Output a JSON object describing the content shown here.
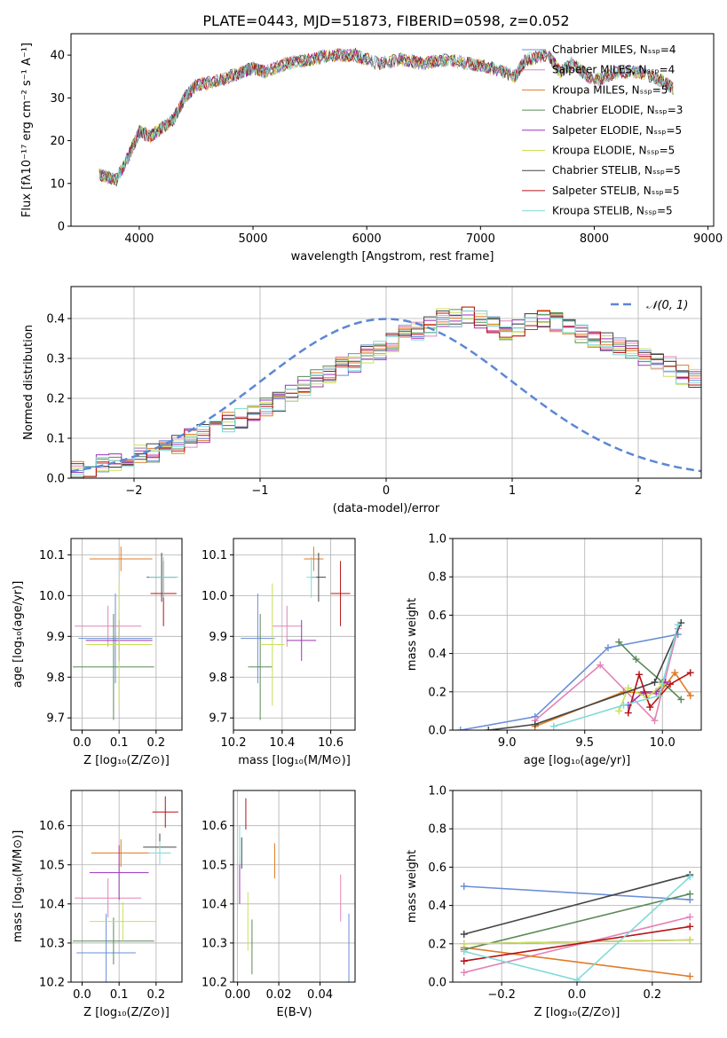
{
  "figure_title": "PLATE=0443, MJD=51873, FIBERID=0598, z=0.052",
  "colors": [
    "#6a8ed8",
    "#e383b6",
    "#e17b25",
    "#5a8a58",
    "#9b33b9",
    "#c8e05a",
    "#444444",
    "#b51316",
    "#7fd9d9"
  ],
  "chart_data": [
    {
      "id": "spectrum",
      "type": "line",
      "xlabel": "wavelength [Angstrom, rest frame]",
      "ylabel": "Flux [fλ10⁻¹⁷ erg cm⁻² s⁻¹ A⁻¹]",
      "xlim": [
        3400,
        9050
      ],
      "ylim": [
        0,
        45
      ],
      "xticks": [
        "4000",
        "5000",
        "6000",
        "7000",
        "8000",
        "9000"
      ],
      "yticks": [
        "0",
        "10",
        "20",
        "30",
        "40"
      ],
      "grid": false,
      "legend": "upper-right",
      "legend_entries": [
        "Chabrier MILES, Nₛₛₚ=4",
        "Salpeter MILES, Nₛₛₚ=4",
        "Kroupa MILES, Nₛₛₚ=5",
        "Chabrier ELODIE, Nₛₛₚ=3",
        "Salpeter ELODIE, Nₛₛₚ=5",
        "Kroupa ELODIE, Nₛₛₚ=5",
        "Chabrier STELIB, Nₛₛₚ=5",
        "Salpeter STELIB, Nₛₛₚ=5",
        "Kroupa STELIB, Nₛₛₚ=5"
      ],
      "x": [
        3650,
        3800,
        3900,
        4000,
        4100,
        4200,
        4300,
        4400,
        4500,
        4700,
        4900,
        5000,
        5100,
        5300,
        5500,
        5700,
        5900,
        6100,
        6300,
        6500,
        6700,
        6900,
        7100,
        7300,
        7400,
        7600,
        7700,
        7800,
        8000,
        8200,
        8400,
        8600,
        8700
      ],
      "y": [
        12,
        11,
        16,
        22,
        21,
        23,
        25,
        30,
        33,
        34,
        36,
        37,
        36,
        38,
        39,
        40,
        40,
        38,
        39,
        38,
        39,
        38,
        37,
        35,
        39,
        40,
        36,
        38,
        34,
        36,
        36,
        34,
        32
      ]
    },
    {
      "id": "residuals",
      "type": "histogram",
      "xlabel": "(data-model)/error",
      "ylabel": "Normed distribution",
      "xlim": [
        -2.5,
        2.5
      ],
      "ylim": [
        0,
        0.48
      ],
      "xticks": [
        "−2",
        "−1",
        "0",
        "1",
        "2"
      ],
      "yticks": [
        "0.0",
        "0.1",
        "0.2",
        "0.3",
        "0.4"
      ],
      "grid": true,
      "legend": "upper-right",
      "legend_entries": [
        "𝒩(0, 1)"
      ],
      "bin_width": 0.1,
      "bins_start": -2.5,
      "base": [
        0.02,
        0.025,
        0.035,
        0.04,
        0.05,
        0.06,
        0.065,
        0.075,
        0.085,
        0.1,
        0.11,
        0.12,
        0.14,
        0.15,
        0.16,
        0.18,
        0.19,
        0.21,
        0.23,
        0.25,
        0.26,
        0.28,
        0.29,
        0.31,
        0.32,
        0.34,
        0.36,
        0.37,
        0.38,
        0.4,
        0.4,
        0.41,
        0.4,
        0.38,
        0.37,
        0.38,
        0.39,
        0.4,
        0.39,
        0.38,
        0.36,
        0.35,
        0.34,
        0.33,
        0.32,
        0.3,
        0.29,
        0.28,
        0.26,
        0.25,
        0.23,
        0.21,
        0.2,
        0.18,
        0.17,
        0.15,
        0.14,
        0.12,
        0.11,
        0.1,
        0.09,
        0.08,
        0.07,
        0.06,
        0.055,
        0.05,
        0.045,
        0.035,
        0.03,
        0.025,
        0.02
      ]
    },
    {
      "id": "age-vs-Z",
      "type": "scatter",
      "xlabel": "Z [log₁₀(Z/Z⊙)]",
      "ylabel": "age  [log₁₀(age/yr)]",
      "xlim": [
        -0.03,
        0.27
      ],
      "ylim": [
        9.67,
        10.14
      ],
      "xticks": [
        "0.0",
        "0.1",
        "0.2"
      ],
      "yticks": [
        "9.7",
        "9.8",
        "9.9",
        "10.0",
        "10.1"
      ],
      "grid": true,
      "points": [
        {
          "x": 0.09,
          "y": 9.895,
          "xerr": 0.1,
          "yerr": 0.11
        },
        {
          "x": 0.07,
          "y": 9.925,
          "xerr": 0.09,
          "yerr": 0.05
        },
        {
          "x": 0.105,
          "y": 10.09,
          "xerr": 0.085,
          "yerr": 0.03
        },
        {
          "x": 0.085,
          "y": 9.825,
          "xerr": 0.11,
          "yerr": 0.13
        },
        {
          "x": 0.1,
          "y": 9.89,
          "xerr": 0.09,
          "yerr": 0.05
        },
        {
          "x": 0.1,
          "y": 9.88,
          "xerr": 0.09,
          "yerr": 0.15
        },
        {
          "x": 0.215,
          "y": 10.045,
          "xerr": 0.04,
          "yerr": 0.06
        },
        {
          "x": 0.22,
          "y": 10.005,
          "xerr": 0.035,
          "yerr": 0.08
        },
        {
          "x": 0.22,
          "y": 10.045,
          "xerr": 0.04,
          "yerr": 0.05
        }
      ]
    },
    {
      "id": "age-vs-mass",
      "type": "scatter",
      "xlabel": "mass [log₁₀(M/M⊙)]",
      "ylabel": "",
      "xlim": [
        10.2,
        10.7
      ],
      "ylim": [
        9.67,
        10.14
      ],
      "xticks": [
        "10.2",
        "10.4",
        "10.6"
      ],
      "yticks": [
        "9.7",
        "9.8",
        "9.9",
        "10.0",
        "10.1"
      ],
      "grid": true,
      "points": [
        {
          "x": 10.3,
          "y": 9.895,
          "xerr": 0.07,
          "yerr": 0.11
        },
        {
          "x": 10.42,
          "y": 9.925,
          "xerr": 0.06,
          "yerr": 0.05
        },
        {
          "x": 10.53,
          "y": 10.09,
          "xerr": 0.04,
          "yerr": 0.03
        },
        {
          "x": 10.31,
          "y": 9.825,
          "xerr": 0.05,
          "yerr": 0.13
        },
        {
          "x": 10.48,
          "y": 9.89,
          "xerr": 0.06,
          "yerr": 0.05
        },
        {
          "x": 10.36,
          "y": 9.88,
          "xerr": 0.05,
          "yerr": 0.15
        },
        {
          "x": 10.55,
          "y": 10.045,
          "xerr": 0.03,
          "yerr": 0.06
        },
        {
          "x": 10.64,
          "y": 10.005,
          "xerr": 0.04,
          "yerr": 0.08
        },
        {
          "x": 10.52,
          "y": 10.045,
          "xerr": 0.02,
          "yerr": 0.05
        }
      ]
    },
    {
      "id": "mass-weight-vs-age",
      "type": "line",
      "xlabel": "age  [log₁₀(age/yr)]",
      "ylabel": "mass weight",
      "xlim": [
        8.65,
        10.25
      ],
      "ylim": [
        0,
        1
      ],
      "xticks": [
        "9.0",
        "9.5",
        "10.0"
      ],
      "yticks": [
        "0.0",
        "0.2",
        "0.4",
        "0.6",
        "0.8",
        "1.0"
      ],
      "grid": true,
      "series": [
        {
          "x": [
            8.7,
            9.18,
            9.65,
            10.1
          ],
          "y": [
            0.0,
            0.07,
            0.43,
            0.5
          ]
        },
        {
          "x": [
            9.18,
            9.6,
            9.95,
            10.1
          ],
          "y": [
            0.05,
            0.34,
            0.05,
            0.53
          ]
        },
        {
          "x": [
            9.18,
            9.75,
            9.98,
            10.08,
            10.18
          ],
          "y": [
            0.02,
            0.2,
            0.19,
            0.3,
            0.18
          ]
        },
        {
          "x": [
            9.72,
            9.83,
            10.0,
            10.12
          ],
          "y": [
            0.46,
            0.37,
            0.25,
            0.16
          ]
        },
        {
          "x": [
            9.78,
            9.88,
            9.96,
            10.02
          ],
          "y": [
            0.13,
            0.2,
            0.2,
            0.25
          ]
        },
        {
          "x": [
            9.72,
            9.78,
            9.9,
            10.0
          ],
          "y": [
            0.1,
            0.22,
            0.17,
            0.24
          ]
        },
        {
          "x": [
            8.88,
            9.18,
            9.95,
            10.12
          ],
          "y": [
            0.0,
            0.03,
            0.25,
            0.56
          ]
        },
        {
          "x": [
            9.78,
            9.85,
            9.92,
            10.05,
            10.18
          ],
          "y": [
            0.09,
            0.29,
            0.12,
            0.24,
            0.3
          ]
        },
        {
          "x": [
            9.3,
            9.75,
            9.98,
            10.1
          ],
          "y": [
            0.02,
            0.13,
            0.18,
            0.55
          ]
        }
      ]
    },
    {
      "id": "mass-vs-Z",
      "type": "scatter",
      "xlabel": "Z [log₁₀(Z/Z⊙)]",
      "ylabel": "mass [log₁₀(M/M⊙)]",
      "xlim": [
        -0.03,
        0.27
      ],
      "ylim": [
        10.2,
        10.69
      ],
      "xticks": [
        "0.0",
        "0.1",
        "0.2"
      ],
      "yticks": [
        "10.2",
        "10.3",
        "10.4",
        "10.5",
        "10.6"
      ],
      "grid": true,
      "points": [
        {
          "x": 0.065,
          "y": 10.275,
          "xerr": 0.08,
          "yerr": 0.1
        },
        {
          "x": 0.07,
          "y": 10.415,
          "xerr": 0.09,
          "yerr": 0.05
        },
        {
          "x": 0.105,
          "y": 10.53,
          "xerr": 0.08,
          "yerr": 0.035
        },
        {
          "x": 0.085,
          "y": 10.305,
          "xerr": 0.11,
          "yerr": 0.06
        },
        {
          "x": 0.1,
          "y": 10.48,
          "xerr": 0.08,
          "yerr": 0.07
        },
        {
          "x": 0.11,
          "y": 10.355,
          "xerr": 0.09,
          "yerr": 0.05
        },
        {
          "x": 0.21,
          "y": 10.545,
          "xerr": 0.045,
          "yerr": 0.035
        },
        {
          "x": 0.225,
          "y": 10.635,
          "xerr": 0.035,
          "yerr": 0.04
        },
        {
          "x": 0.21,
          "y": 10.53,
          "xerr": 0.03,
          "yerr": 0.03
        }
      ]
    },
    {
      "id": "mass-vs-EBV",
      "type": "scatter",
      "xlabel": "E(B-V)",
      "ylabel": "",
      "xlim": [
        -0.002,
        0.057
      ],
      "ylim": [
        10.2,
        10.69
      ],
      "xticks": [
        "0.00",
        "0.02",
        "0.04"
      ],
      "yticks": [
        "10.2",
        "10.3",
        "10.4",
        "10.5",
        "10.6"
      ],
      "grid": true,
      "points": [
        {
          "x": 0.054,
          "y": 10.275,
          "xerr": 0,
          "yerr": 0.1
        },
        {
          "x": 0.05,
          "y": 10.415,
          "xerr": 0,
          "yerr": 0.06
        },
        {
          "x": 0.018,
          "y": 10.51,
          "xerr": 0,
          "yerr": 0.045
        },
        {
          "x": 0.007,
          "y": 10.29,
          "xerr": 0,
          "yerr": 0.07
        },
        {
          "x": 0.001,
          "y": 10.46,
          "xerr": 0,
          "yerr": 0.06
        },
        {
          "x": 0.005,
          "y": 10.355,
          "xerr": 0,
          "yerr": 0.075
        },
        {
          "x": 0.002,
          "y": 10.53,
          "xerr": 0,
          "yerr": 0.04
        },
        {
          "x": 0.004,
          "y": 10.63,
          "xerr": 0,
          "yerr": 0.04
        },
        {
          "x": 0.001,
          "y": 10.55,
          "xerr": 0,
          "yerr": 0.05
        }
      ]
    },
    {
      "id": "mass-weight-vs-Z",
      "type": "line",
      "xlabel": "Z [log₁₀(Z/Z⊙)]",
      "ylabel": "mass weight",
      "xlim": [
        -0.33,
        0.33
      ],
      "ylim": [
        0,
        1
      ],
      "xticks": [
        "−0.2",
        "0.0",
        "0.2"
      ],
      "yticks": [
        "0.0",
        "0.2",
        "0.4",
        "0.6",
        "0.8",
        "1.0"
      ],
      "grid": true,
      "series": [
        {
          "x": [
            -0.3,
            0.3
          ],
          "y": [
            0.5,
            0.43
          ]
        },
        {
          "x": [
            -0.3,
            0.3
          ],
          "y": [
            0.05,
            0.34
          ]
        },
        {
          "x": [
            -0.3,
            0.3
          ],
          "y": [
            0.18,
            0.03
          ]
        },
        {
          "x": [
            -0.3,
            0.3
          ],
          "y": [
            0.17,
            0.46
          ]
        },
        {
          "x": [
            -0.3,
            0.3
          ],
          "y": [
            0.2,
            0.22
          ]
        },
        {
          "x": [
            -0.3,
            0.3
          ],
          "y": [
            0.2,
            0.22
          ]
        },
        {
          "x": [
            -0.3,
            0.3
          ],
          "y": [
            0.25,
            0.56
          ]
        },
        {
          "x": [
            -0.3,
            0.3
          ],
          "y": [
            0.11,
            0.29
          ]
        },
        {
          "x": [
            -0.3,
            0.0,
            0.3
          ],
          "y": [
            0.16,
            0.01,
            0.55
          ]
        }
      ]
    }
  ]
}
